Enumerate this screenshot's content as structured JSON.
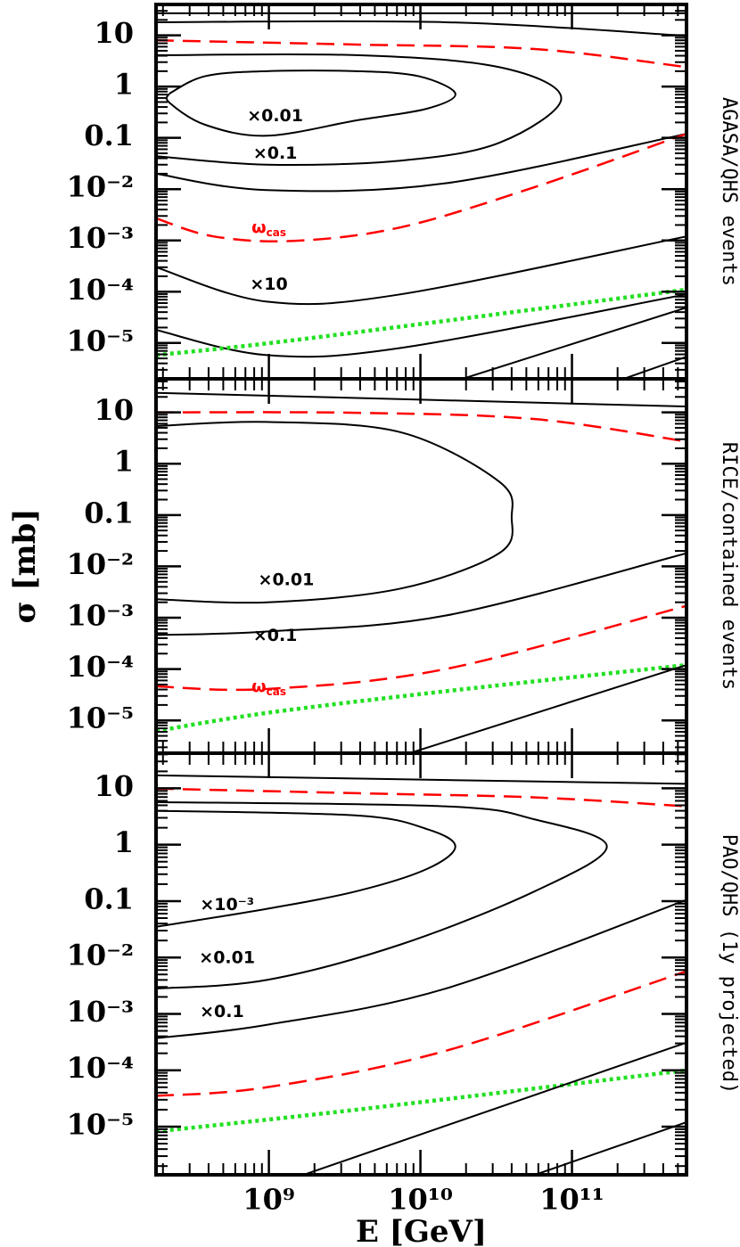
{
  "chart_data": [
    {
      "type": "line",
      "title": "AGASA/QHS events",
      "xscale": "log",
      "yscale": "log",
      "xlim": [
        180000000.0,
        570000000000.0
      ],
      "ylim": [
        2e-06,
        40
      ],
      "yticks": [
        10,
        1,
        0.1,
        {
          "value": 0.01,
          "label": "10⁻²"
        },
        {
          "value": 0.001,
          "label": "10⁻³"
        },
        {
          "value": 0.0001,
          "label": "10⁻⁴"
        },
        {
          "value": 1e-05,
          "label": "10⁻⁵"
        }
      ],
      "series": [
        {
          "color": "#000000",
          "style": "solid",
          "x": [
            180000000.0,
            570000000000.0
          ],
          "values": [
            27,
            27
          ]
        },
        {
          "color": "#000000",
          "style": "solid",
          "x": [
            180000000.0,
            14600000000.0,
            570000000000.0
          ],
          "values": [
            18,
            18,
            9.8
          ]
        },
        {
          "color": "#ff0000",
          "style": "dashed",
          "x": [
            180000000.0,
            3800000000.0,
            57000000000.0,
            570000000000.0
          ],
          "values": [
            8,
            6.6,
            5.4,
            2.4
          ]
        },
        {
          "color": "#000000",
          "style": "solid",
          "x": [
            180000000.0,
            3800000000.0,
            33000000000.0,
            85000000000.0,
            33000000000.0,
            7400000000.0,
            970000000.0,
            180000000.0
          ],
          "values": [
            4.1,
            4.1,
            2.4,
            0.59,
            0.08,
            0.036,
            0.03,
            0.044
          ]
        },
        {
          "color": "#000000",
          "style": "solid",
          "x": [
            220000000.0,
            380000000.0,
            970000000.0,
            3800000000.0,
            9700000000.0,
            17000000000.0,
            11000000000.0,
            3800000000.0,
            970000000.0,
            380000000.0,
            220000000.0,
            220000000.0
          ],
          "values": [
            0.73,
            1.6,
            2.0,
            2.0,
            1.6,
            0.73,
            0.37,
            0.22,
            0.11,
            0.18,
            0.49,
            0.73
          ]
        },
        {
          "color": "#000000",
          "style": "solid",
          "x": [
            180000000.0,
            970000000.0,
            14600000000.0,
            570000000000.0
          ],
          "values": [
            0.02,
            0.0096,
            0.013,
            0.12
          ]
        },
        {
          "color": "#ff0000",
          "style": "dashed",
          "x": [
            180000000.0,
            430000000.0,
            1460000000.0,
            7400000000.0,
            57000000000.0,
            570000000000.0
          ],
          "values": [
            0.0027,
            0.0012,
            0.00098,
            0.0018,
            0.011,
            0.12
          ]
        },
        {
          "color": "#000000",
          "style": "solid",
          "x": [
            180000000.0,
            970000000.0,
            7400000000.0,
            570000000000.0
          ],
          "values": [
            0.0003,
            6.4e-05,
            8.9e-05,
            0.0012
          ]
        },
        {
          "color": "#000000",
          "style": "solid",
          "x": [
            180000000.0,
            970000000.0,
            7400000000.0,
            570000000000.0
          ],
          "values": [
            1.8e-05,
            5.8e-06,
            8e-06,
            8.9e-05
          ]
        },
        {
          "color": "#22e022",
          "style": "dotted",
          "x": [
            180000000.0,
            970000000.0,
            14600000000.0,
            570000000000.0
          ],
          "values": [
            5.8e-06,
            9.8e-06,
            2.7e-05,
            0.00011
          ]
        },
        {
          "color": "#000000",
          "style": "solid",
          "x": [
            19000000000.0,
            570000000000.0
          ],
          "values": [
            2e-06,
            4.9e-05
          ]
        },
        {
          "color": "#000000",
          "style": "solid",
          "x": [
            220000000000.0,
            570000000000.0
          ],
          "values": [
            2e-06,
            5.4e-06
          ]
        }
      ],
      "annotations": [
        {
          "text": "×0.01",
          "x": 1100000000.0,
          "y": 0.27,
          "color": "#000000"
        },
        {
          "text": "×0.1",
          "x": 1100000000.0,
          "y": 0.05,
          "color": "#000000"
        },
        {
          "text": "ω",
          "subscript": "cas",
          "x": 1000000000.0,
          "y": 0.0018,
          "color": "#ff0000"
        },
        {
          "text": "×10",
          "x": 1000000000.0,
          "y": 0.00014,
          "color": "#000000"
        }
      ]
    },
    {
      "type": "line",
      "title": "RICE/contained events",
      "ylabel": "σ [mb]",
      "xscale": "log",
      "yscale": "log",
      "xlim": [
        180000000.0,
        570000000000.0
      ],
      "ylim": [
        2.3e-06,
        45
      ],
      "yticks": [
        10,
        1,
        0.1,
        {
          "value": 0.01,
          "label": "10⁻²"
        },
        {
          "value": 0.001,
          "label": "10⁻³"
        },
        {
          "value": 0.0001,
          "label": "10⁻⁴"
        },
        {
          "value": 1e-05,
          "label": "10⁻⁵"
        }
      ],
      "series": [
        {
          "color": "#000000",
          "style": "solid",
          "x": [
            180000000.0,
            570000000000.0
          ],
          "values": [
            24,
            13
          ]
        },
        {
          "color": "#ff0000",
          "style": "dashed",
          "x": [
            180000000.0,
            3800000000.0,
            57000000000.0,
            570000000000.0
          ],
          "values": [
            10,
            9.8,
            7.4,
            2.7
          ]
        },
        {
          "color": "#000000",
          "style": "solid",
          "x": [
            180000000.0,
            970000000.0,
            7400000000.0,
            33000000000.0,
            40000000000.0,
            33000000000.0,
            7400000000.0,
            970000000.0,
            180000000.0
          ],
          "values": [
            5.4,
            6.5,
            4.1,
            0.45,
            0.091,
            0.018,
            0.0037,
            0.002,
            0.0023
          ]
        },
        {
          "color": "#000000",
          "style": "solid",
          "x": [
            180000000.0,
            970000000.0,
            14600000000.0,
            570000000000.0
          ],
          "values": [
            0.00046,
            0.00054,
            0.0011,
            0.018
          ]
        },
        {
          "color": "#ff0000",
          "style": "dashed",
          "x": [
            180000000.0,
            970000000.0,
            14600000000.0,
            570000000000.0
          ],
          "values": [
            4.6e-05,
            4.1e-05,
            0.0001,
            0.0017
          ]
        },
        {
          "color": "#22e022",
          "style": "dotted",
          "x": [
            180000000.0,
            970000000.0,
            14600000000.0,
            570000000000.0
          ],
          "values": [
            6.2e-06,
            1.4e-05,
            3.7e-05,
            0.00012
          ]
        },
        {
          "color": "#000000",
          "style": "solid",
          "x": [
            8500000000.0,
            570000000000.0
          ],
          "values": [
            2.3e-06,
            0.00012
          ]
        }
      ],
      "annotations": [
        {
          "text": "×0.01",
          "x": 1300000000.0,
          "y": 0.0055,
          "color": "#000000"
        },
        {
          "text": "×0.1",
          "x": 1100000000.0,
          "y": 0.00045,
          "color": "#000000"
        },
        {
          "text": "ω",
          "subscript": "cas",
          "x": 1000000000.0,
          "y": 4.6e-05,
          "color": "#ff0000"
        }
      ]
    },
    {
      "type": "line",
      "title": "PAO/QHS (1y projected)",
      "xlabel": "E [GeV]",
      "xscale": "log",
      "yscale": "log",
      "xlim": [
        180000000.0,
        570000000000.0
      ],
      "ylim": [
        1.4e-06,
        42
      ],
      "xticks": [
        {
          "value": 1000000000.0,
          "label": "10⁹"
        },
        {
          "value": 10000000000.0,
          "label": "10¹⁰"
        },
        {
          "value": 100000000000.0,
          "label": "10¹¹"
        }
      ],
      "yticks": [
        10,
        1,
        0.1,
        {
          "value": 0.01,
          "label": "10⁻²"
        },
        {
          "value": 0.001,
          "label": "10⁻³"
        },
        {
          "value": 0.0001,
          "label": "10⁻⁴"
        },
        {
          "value": 1e-05,
          "label": "10⁻⁵"
        }
      ],
      "series": [
        {
          "color": "#000000",
          "style": "solid",
          "x": [
            180000000.0,
            570000000000.0
          ],
          "values": [
            17,
            12
          ]
        },
        {
          "color": "#ff0000",
          "style": "dashed",
          "x": [
            180000000.0,
            3800000000.0,
            57000000000.0,
            570000000000.0
          ],
          "values": [
            9.9,
            8.2,
            6.9,
            4.8
          ]
        },
        {
          "color": "#000000",
          "style": "solid",
          "x": [
            180000000.0,
            3800000000.0,
            11000000000.0,
            17000000000.0,
            11000000000.0,
            3800000000.0,
            970000000.0,
            180000000.0
          ],
          "values": [
            4.0,
            3.3,
            1.9,
            0.93,
            0.37,
            0.15,
            0.073,
            0.035
          ]
        },
        {
          "color": "#000000",
          "style": "solid",
          "x": [
            180000000.0,
            14600000000.0,
            57000000000.0,
            170000000000.0,
            57000000000.0,
            7400000000.0,
            970000000.0,
            180000000.0
          ],
          "values": [
            5.7,
            4.8,
            2.8,
            0.93,
            0.15,
            0.017,
            0.004,
            0.0028
          ]
        },
        {
          "color": "#000000",
          "style": "solid",
          "x": [
            180000000.0,
            970000000.0,
            14600000000.0,
            570000000000.0
          ],
          "values": [
            0.00037,
            0.00064,
            0.0028,
            0.105
          ]
        },
        {
          "color": "#ff0000",
          "style": "dashed",
          "x": [
            180000000.0,
            970000000.0,
            14600000000.0,
            570000000000.0
          ],
          "values": [
            3.5e-05,
            5e-05,
            0.00022,
            0.0057
          ]
        },
        {
          "color": "#22e022",
          "style": "dotted",
          "x": [
            180000000.0,
            3800000000.0,
            570000000000.0
          ],
          "values": [
            8.2e-06,
            2e-05,
            0.0001
          ]
        },
        {
          "color": "#000000",
          "style": "solid",
          "x": [
            1700000000.0,
            570000000000.0
          ],
          "values": [
            1.4e-06,
            0.00031
          ]
        },
        {
          "color": "#000000",
          "style": "solid",
          "x": [
            57000000000.0,
            570000000000.0
          ],
          "values": [
            1.4e-06,
            1.2e-05
          ]
        }
      ],
      "annotations": [
        {
          "text": "×10⁻³",
          "x": 530000000.0,
          "y": 0.087,
          "color": "#000000"
        },
        {
          "text": "×0.01",
          "x": 530000000.0,
          "y": 0.0099,
          "color": "#000000"
        },
        {
          "text": "×0.1",
          "x": 490000000.0,
          "y": 0.0011,
          "color": "#000000"
        }
      ]
    }
  ]
}
